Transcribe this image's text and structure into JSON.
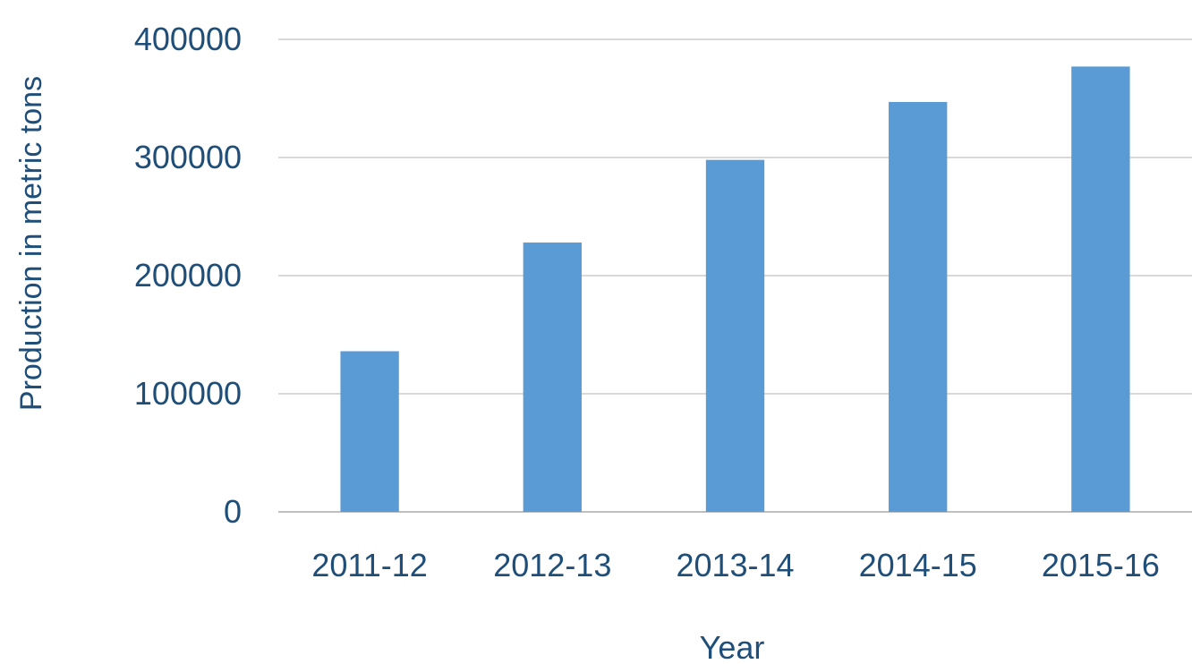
{
  "chart_data": {
    "type": "bar",
    "categories": [
      "2011-12",
      "2012-13",
      "2013-14",
      "2014-15",
      "2015-16"
    ],
    "values": [
      136000,
      228000,
      298000,
      347000,
      377000
    ],
    "xlabel": "Year",
    "ylabel": "Production in metric tons",
    "ylim": [
      0,
      400000
    ],
    "yticks": [
      "0",
      "100000",
      "200000",
      "300000",
      "400000"
    ],
    "grid": "horizontal",
    "legend": "none"
  },
  "colors": {
    "bar": "#5B9BD5",
    "text": "#1F4E79",
    "grid": "#D9D9D9",
    "axis": "#BFBFBF"
  }
}
